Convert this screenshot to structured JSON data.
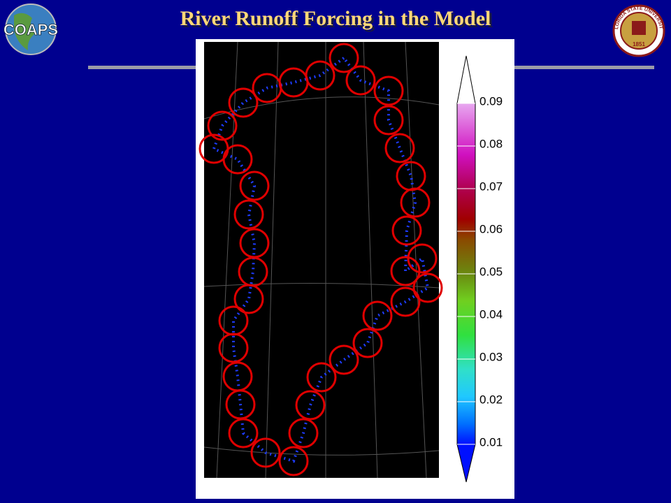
{
  "header": {
    "title": "River Runoff Forcing in the Model",
    "left_logo": "COAPS",
    "right_logo": {
      "ring_text": "FLORIDA STATE UNIVERSITY",
      "year": "1851"
    }
  },
  "colorbar": {
    "ticks": [
      0.01,
      0.02,
      0.03,
      0.04,
      0.05,
      0.06,
      0.07,
      0.08,
      0.09
    ]
  }
}
